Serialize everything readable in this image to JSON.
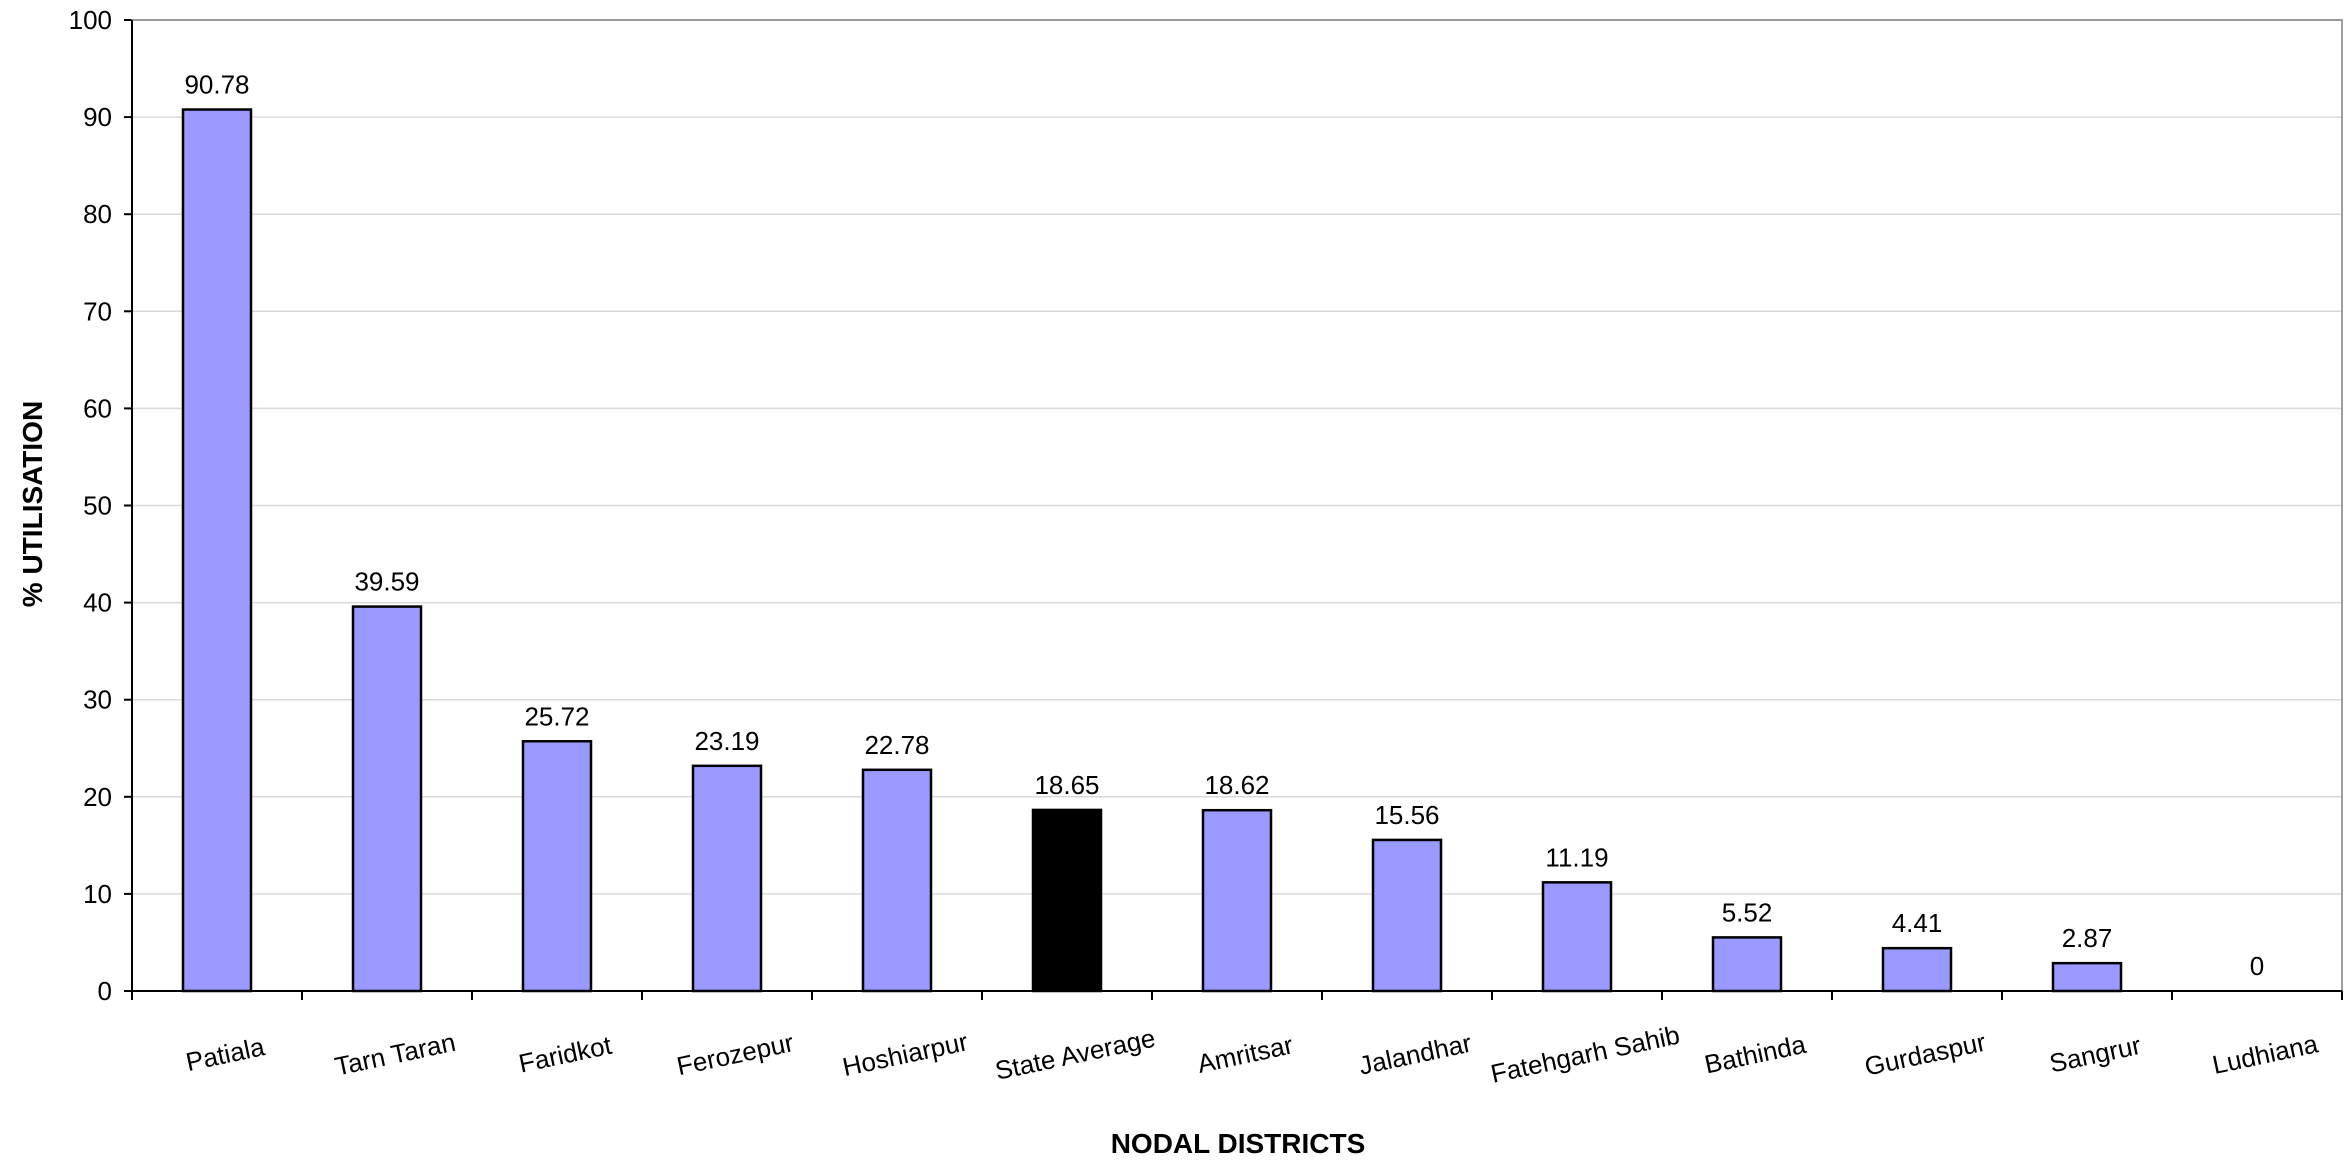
{
  "chart_data": {
    "type": "bar",
    "title": "",
    "xlabel": "NODAL DISTRICTS",
    "ylabel": "% UTILISATION",
    "ylim": [
      0,
      100
    ],
    "yticks": [
      0,
      10,
      20,
      30,
      40,
      50,
      60,
      70,
      80,
      90,
      100
    ],
    "grid": true,
    "legend": "none",
    "categories": [
      "Patiala",
      "Tarn Taran",
      "Faridkot",
      "Ferozepur",
      "Hoshiarpur",
      "State Average",
      "Amritsar",
      "Jalandhar",
      "Fatehgarh Sahib",
      "Bathinda",
      "Gurdaspur",
      "Sangrur",
      "Ludhiana"
    ],
    "values": [
      90.78,
      39.59,
      25.72,
      23.19,
      22.78,
      18.65,
      18.62,
      15.56,
      11.19,
      5.52,
      4.41,
      2.87,
      0
    ],
    "data_labels": [
      "90.78",
      "39.59",
      "25.72",
      "23.19",
      "22.78",
      "18.65",
      "18.62",
      "15.56",
      "11.19",
      "5.52",
      "4.41",
      "2.87",
      "0"
    ],
    "highlight_category": "State Average",
    "colors": {
      "bar": "#9999ff",
      "highlight": "#000000",
      "grid": "#d9d9d9",
      "axis": "#000000"
    }
  }
}
